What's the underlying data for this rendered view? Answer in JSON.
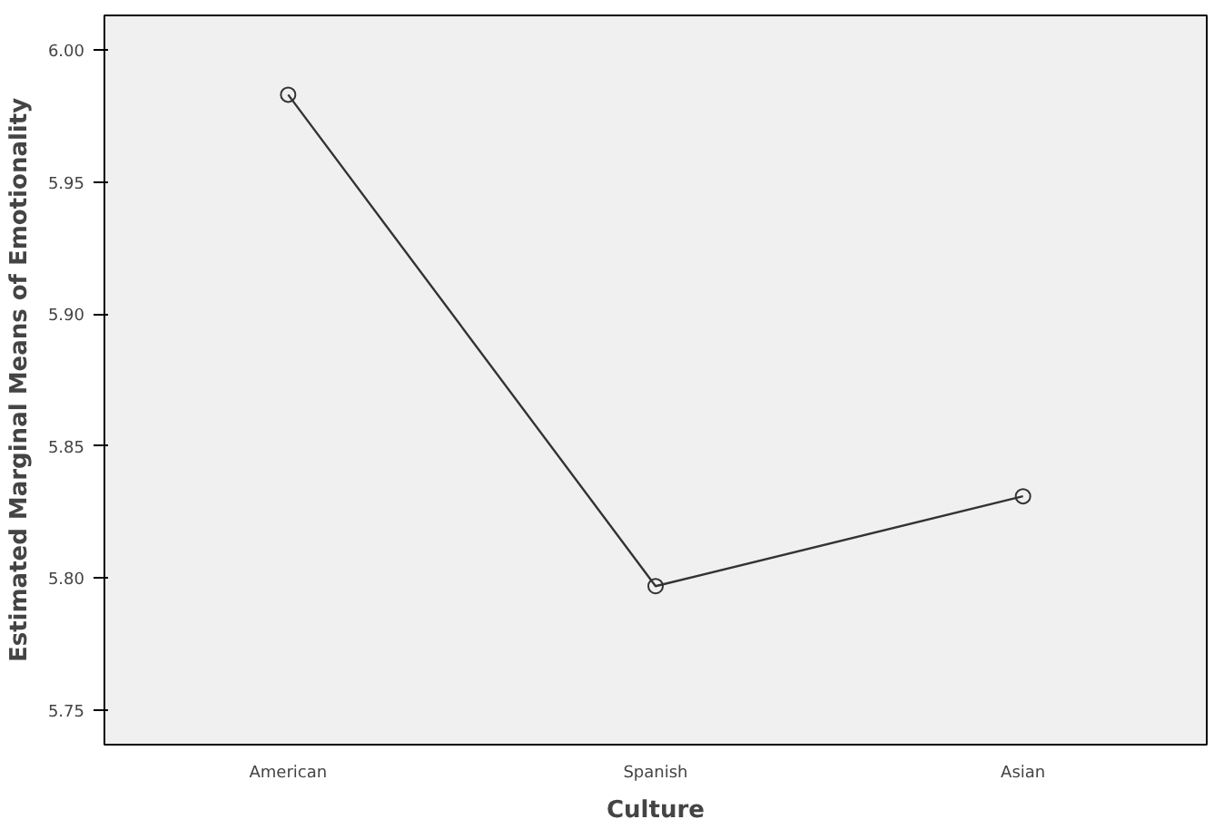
{
  "chart_data": {
    "type": "line",
    "xlabel": "Culture",
    "ylabel": "Estimated Marginal Means of Emotionality",
    "categories": [
      "American",
      "Spanish",
      "Asian"
    ],
    "series": [
      {
        "color": "#333333",
        "values": [
          5.983,
          5.797,
          5.831
        ]
      }
    ],
    "ylim": [
      5.737,
      6.013
    ],
    "yticks": [
      {
        "value": 5.75,
        "label": "5.75"
      },
      {
        "value": 5.8,
        "label": "5.80"
      },
      {
        "value": 5.85,
        "label": "5.85"
      },
      {
        "value": 5.9,
        "label": "5.90"
      },
      {
        "value": 5.95,
        "label": "5.95"
      },
      {
        "value": 6.0,
        "label": "6.00"
      }
    ],
    "grid": false,
    "marker": "circle",
    "line_style": "solid"
  }
}
